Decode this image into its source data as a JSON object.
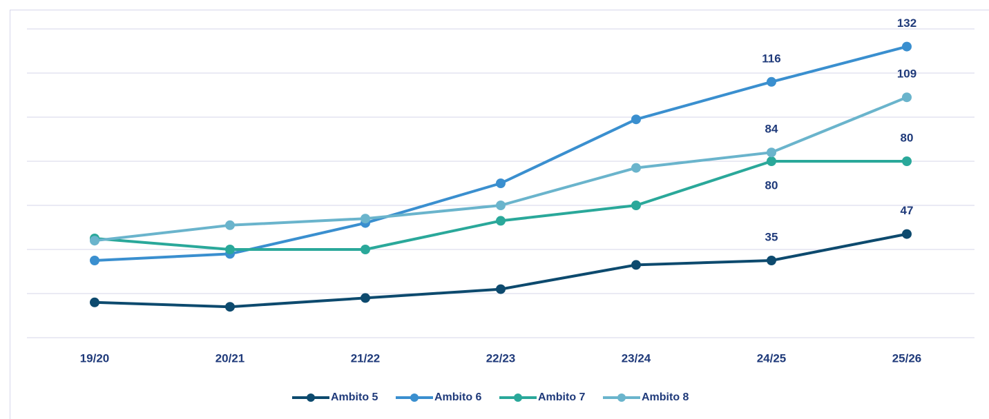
{
  "chart_data": {
    "type": "line",
    "categories": [
      "19/20",
      "20/21",
      "21/22",
      "22/23",
      "23/24",
      "24/25",
      "25/26"
    ],
    "series": [
      {
        "name": "Ambito 5",
        "color": "#0d4a6e",
        "values": [
          16,
          14,
          18,
          22,
          33,
          35,
          47
        ],
        "value_labels": [
          null,
          null,
          null,
          null,
          null,
          "35",
          "47"
        ]
      },
      {
        "name": "Ambito 6",
        "color": "#3a8fcf",
        "values": [
          35,
          38,
          52,
          70,
          99,
          116,
          132
        ],
        "value_labels": [
          null,
          null,
          null,
          null,
          null,
          "116",
          "132"
        ]
      },
      {
        "name": "Ambito 7",
        "color": "#2aa89a",
        "values": [
          45,
          40,
          40,
          53,
          60,
          80,
          80
        ],
        "value_labels": [
          null,
          null,
          null,
          null,
          null,
          "80",
          "80"
        ]
      },
      {
        "name": "Ambito 8",
        "color": "#6ab4cc",
        "values": [
          44,
          51,
          54,
          60,
          77,
          84,
          109
        ],
        "value_labels": [
          null,
          null,
          null,
          null,
          null,
          "84",
          "109"
        ]
      }
    ],
    "ylim": [
      0,
      140
    ],
    "yticks": [
      0,
      20,
      40,
      60,
      80,
      100,
      120,
      140
    ],
    "grid": true,
    "legend": "bottom"
  }
}
